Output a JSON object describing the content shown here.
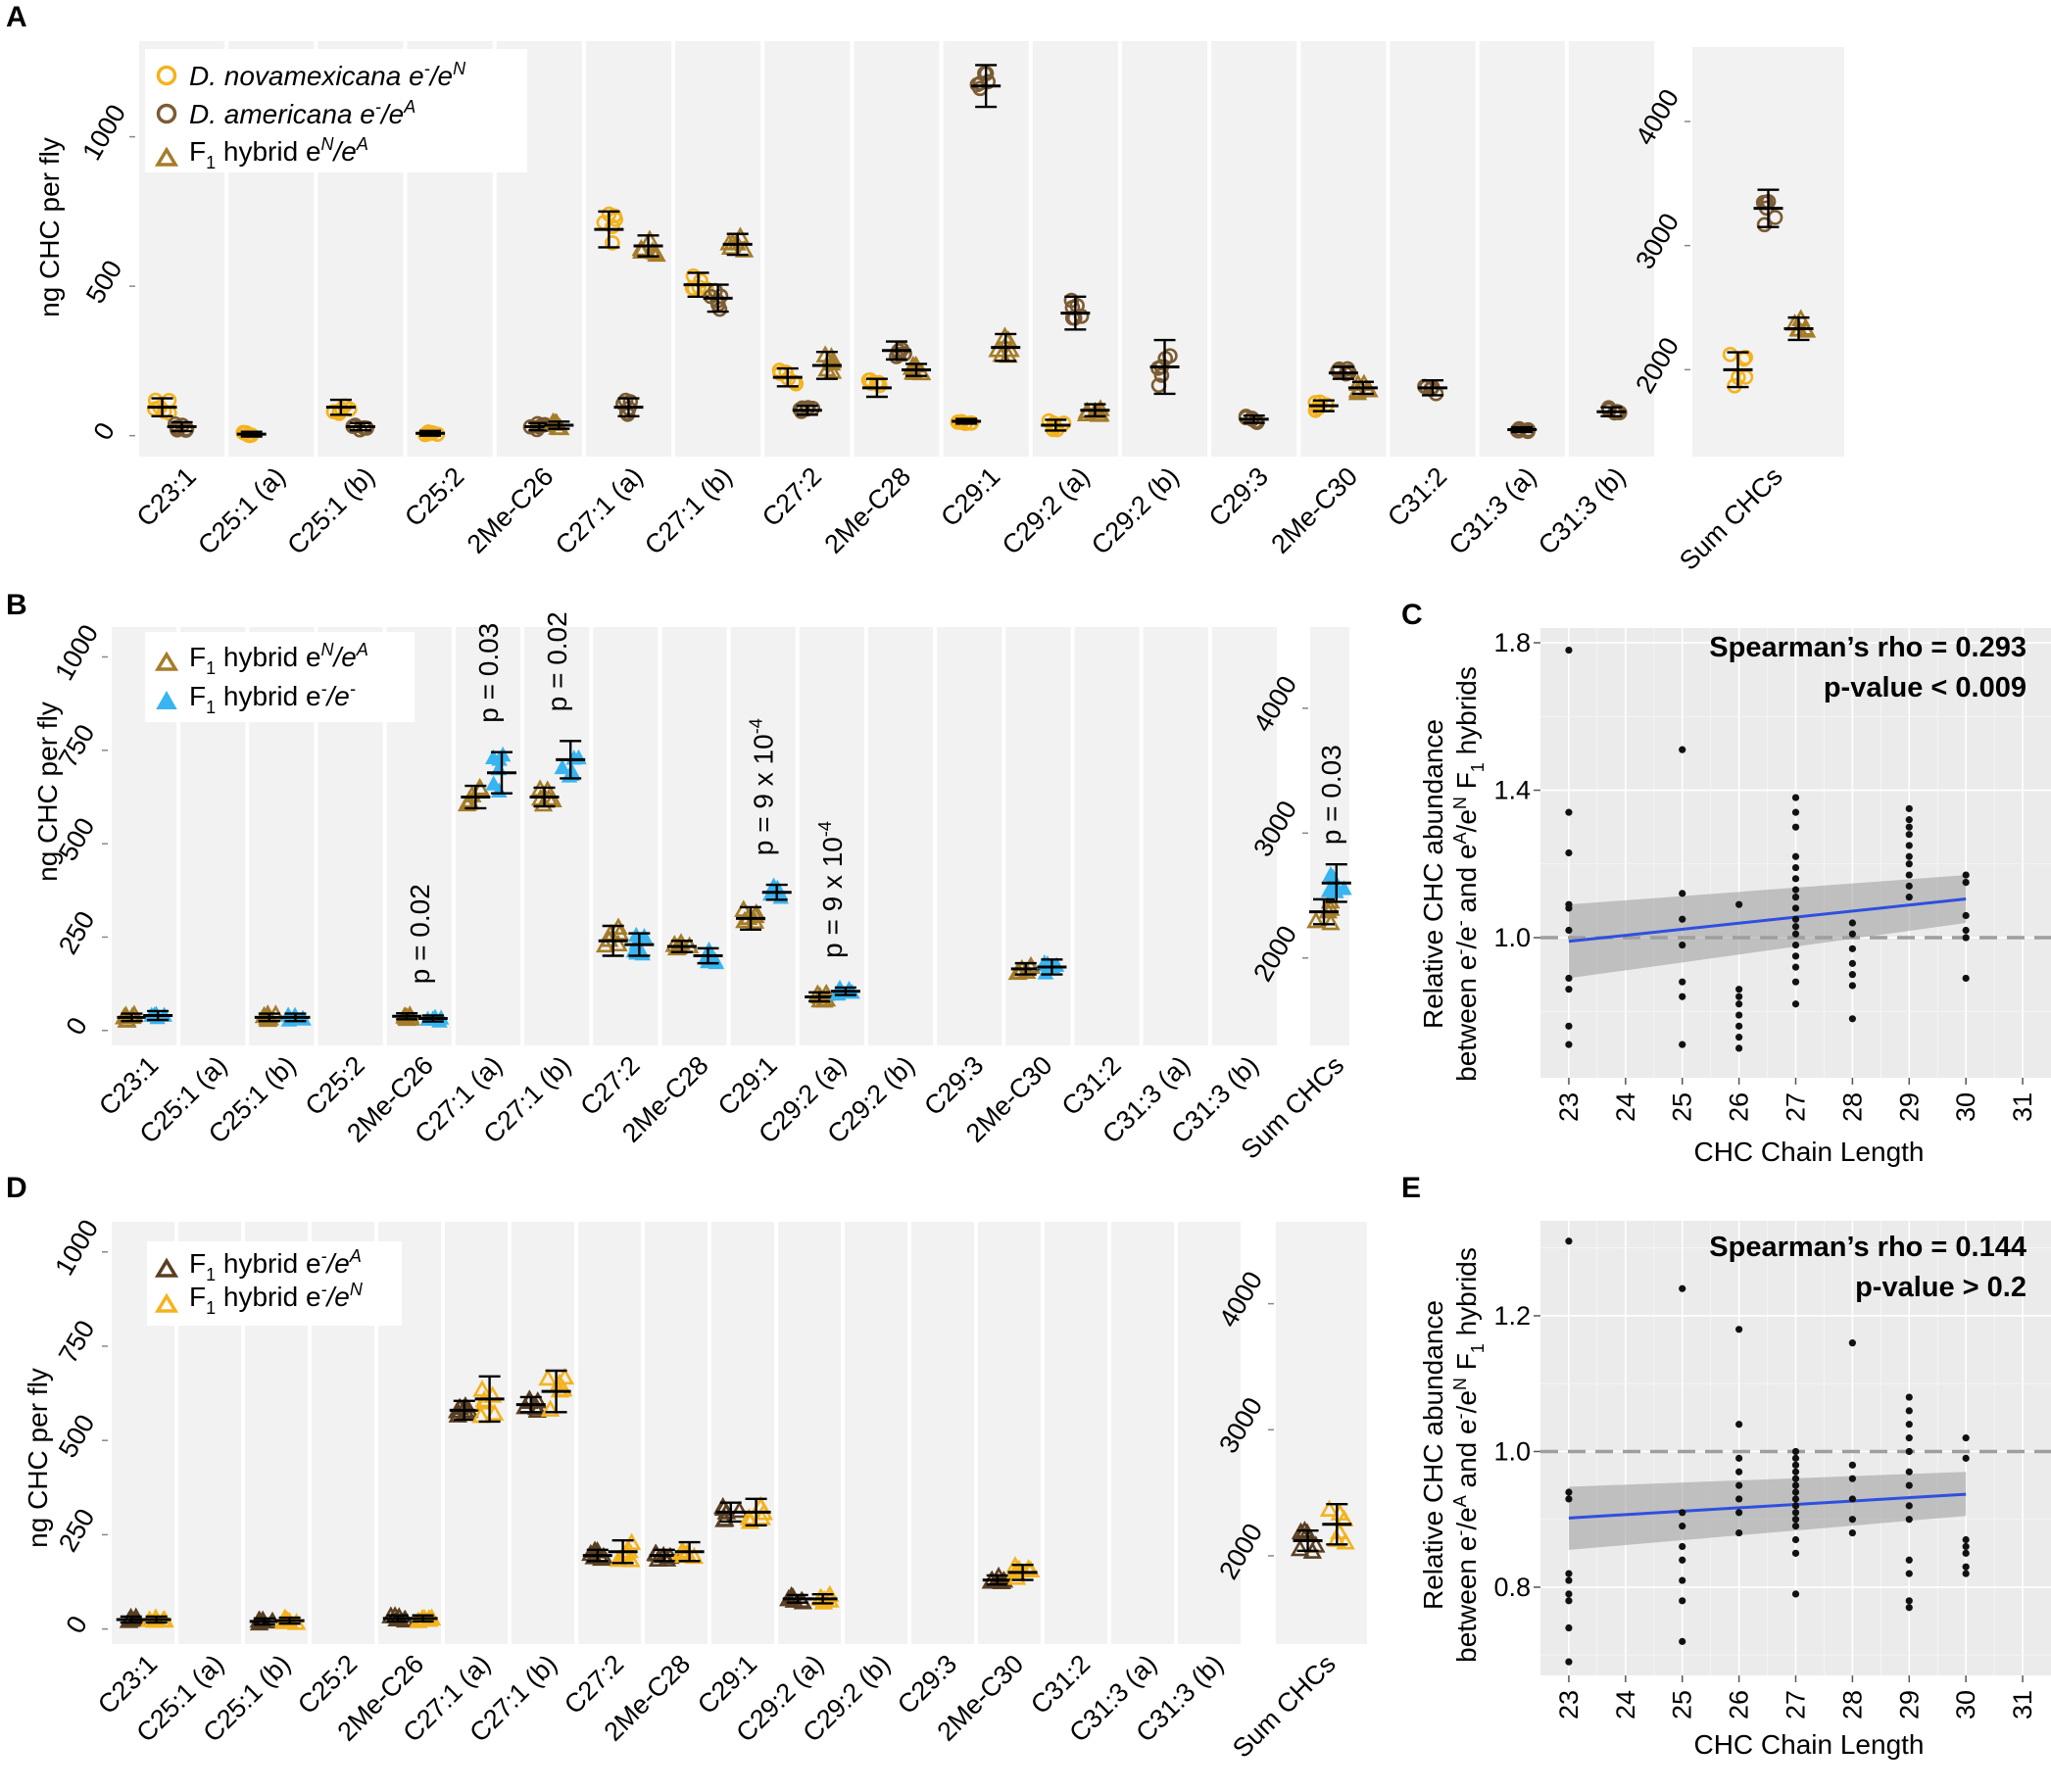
{
  "figure": {
    "panels": [
      "A",
      "B",
      "C",
      "D",
      "E"
    ]
  },
  "chart_data": [
    {
      "id": "A",
      "type": "scatter",
      "ylabel": "ng CHC per fly",
      "categories": [
        "C23:1",
        "C25:1 (a)",
        "C25:1 (b)",
        "C25:2",
        "2Me-C26",
        "C27:1 (a)",
        "C27:1 (b)",
        "C27:2",
        "2Me-C28",
        "C29:1",
        "C29:2 (a)",
        "C29:2 (b)",
        "C29:3",
        "2Me-C30",
        "C31:2",
        "C31:3 (a)",
        "C31:3 (b)"
      ],
      "ylim": [
        -70,
        1320
      ],
      "yticks": [
        0,
        500,
        1000
      ],
      "ytick_labels": [
        "0",
        "500",
        "1000"
      ],
      "sum_panel": {
        "label": "Sum CHCs",
        "ylim": [
          1300,
          4600
        ],
        "yticks": [
          2000,
          3000,
          4000
        ],
        "ytick_labels": [
          "2000",
          "3000",
          "4000"
        ]
      },
      "legend": [
        {
          "name": "D. novamexicana",
          "suffix": "e-/eN",
          "shape": "circle",
          "color": "#f4b31e"
        },
        {
          "name": "D. americana",
          "suffix": "e-/eA",
          "shape": "circle",
          "color": "#7b5c34"
        },
        {
          "name": "F1 hybrid",
          "suffix": "eN/eA",
          "shape": "triangle",
          "color": "#a57c29"
        }
      ],
      "legend_text": {
        "n_name": "D. novamexicana",
        "n_sup1": "-",
        "n_mid": "/e",
        "n_sup2": "N",
        "a_name": "D. americana",
        "a_sup1": "-",
        "a_mid": "/e",
        "a_sup2": "A",
        "h_pre": "F",
        "h_sub": "1",
        "h_mid": " hybrid e",
        "h_sup1": "N",
        "h_mid2": "/e",
        "h_sup2": "A"
      },
      "series": [
        {
          "name": "D. novamexicana e-/eN",
          "values": [
            95,
            5,
            95,
            8,
            null,
            690,
            505,
            195,
            160,
            48,
            35,
            null,
            null,
            100,
            null,
            null,
            null
          ],
          "sum": 2000
        },
        {
          "name": "D. americana e-/eA",
          "values": [
            30,
            null,
            30,
            null,
            30,
            95,
            460,
            85,
            285,
            1170,
            410,
            230,
            55,
            210,
            160,
            20,
            80
          ],
          "sum": 3300
        },
        {
          "name": "F1 hybrid eN/eA",
          "values": [
            null,
            null,
            null,
            null,
            35,
            635,
            640,
            235,
            220,
            295,
            85,
            null,
            null,
            160,
            null,
            null,
            null
          ],
          "sum": 2330
        }
      ],
      "series_errors": [
        [
          30,
          8,
          25,
          8,
          null,
          60,
          40,
          30,
          30,
          8,
          18,
          null,
          null,
          18,
          null,
          null,
          null
        ],
        [
          15,
          null,
          12,
          null,
          12,
          30,
          45,
          15,
          30,
          70,
          55,
          90,
          12,
          20,
          25,
          8,
          15
        ],
        [
          null,
          null,
          null,
          null,
          12,
          35,
          35,
          45,
          20,
          45,
          20,
          null,
          null,
          20,
          null,
          null,
          null
        ]
      ],
      "sum_errors": [
        140,
        150,
        90
      ]
    },
    {
      "id": "B",
      "type": "scatter",
      "ylabel": "ng CHC per fly",
      "categories": [
        "C23:1",
        "C25:1 (a)",
        "C25:1 (b)",
        "C25:2",
        "2Me-C26",
        "C27:1 (a)",
        "C27:1 (b)",
        "C27:2",
        "2Me-C28",
        "C29:1",
        "C29:2 (a)",
        "C29:2 (b)",
        "C29:3",
        "2Me-C30",
        "C31:2",
        "C31:3 (a)",
        "C31:3 (b)"
      ],
      "ylim": [
        -40,
        1080
      ],
      "yticks": [
        0,
        250,
        500,
        750,
        1000
      ],
      "ytick_labels": [
        "0",
        "250",
        "500",
        "750",
        "1000"
      ],
      "sum_panel": {
        "label": "Sum CHCs",
        "ylim": [
          1300,
          4650
        ],
        "yticks": [
          2000,
          3000,
          4000
        ],
        "ytick_labels": [
          "2000",
          "3000",
          "4000"
        ]
      },
      "legend": [
        {
          "name": "F1 hybrid",
          "suffix": "eN/eA",
          "shape": "triangle",
          "color": "#a57c29"
        },
        {
          "name": "F1 hybrid",
          "suffix": "e-/e-",
          "shape": "triangle-filled",
          "color": "#38b4f0"
        }
      ],
      "legend_text": {
        "h1_pre": "F",
        "h1_sub": "1",
        "h1_mid": " hybrid e",
        "h1_sup1": "N",
        "h1_mid2": "/e",
        "h1_sup2": "A",
        "h2_pre": "F",
        "h2_sub": "1",
        "h2_mid": " hybrid e",
        "h2_sup1": "-",
        "h2_mid2": "/e",
        "h2_sup2": "-"
      },
      "series": [
        {
          "name": "F1 hybrid eN/eA",
          "values": [
            35,
            null,
            35,
            null,
            38,
            625,
            625,
            240,
            225,
            300,
            90,
            null,
            null,
            165,
            null,
            null,
            null
          ],
          "sum": 2370
        },
        {
          "name": "F1 hybrid e-/e-",
          "values": [
            40,
            null,
            35,
            null,
            32,
            690,
            725,
            230,
            200,
            370,
            105,
            null,
            null,
            170,
            null,
            null,
            null
          ],
          "sum": 2600
        }
      ],
      "series_errors": [
        [
          10,
          null,
          10,
          null,
          8,
          30,
          25,
          40,
          15,
          30,
          12,
          null,
          null,
          15,
          null,
          null,
          null
        ],
        [
          12,
          null,
          10,
          null,
          8,
          55,
          50,
          30,
          20,
          20,
          10,
          null,
          null,
          20,
          null,
          null,
          null
        ]
      ],
      "sum_errors": [
        100,
        150
      ],
      "annotations": [
        {
          "category": "2Me-C26",
          "text": "p = 0.02"
        },
        {
          "category": "C27:1 (a)",
          "text": "p = 0.03"
        },
        {
          "category": "C27:1 (b)",
          "text": "p = 0.02"
        },
        {
          "category": "C29:1",
          "text": "p = 9 x 10",
          "exp": "-4"
        },
        {
          "category": "C29:2 (a)",
          "text": "p = 9 x 10",
          "exp": "-4"
        },
        {
          "category": "Sum CHCs",
          "text": "p = 0.03"
        }
      ]
    },
    {
      "id": "C",
      "type": "scatter",
      "xlabel": "CHC Chain Length",
      "ylabel_line1": "Relative CHC abundance",
      "ylabel_line2": "between e-/e- and eA/eN F1 hybrids",
      "ylabel_parts": {
        "a": "between e",
        "b": "-",
        "c": "/e",
        "d": "-",
        "e": " and e",
        "f": "A",
        "g": "/e",
        "h": "N",
        "i": " F",
        "j": "1",
        "k": " hybrids"
      },
      "xlim": [
        22.5,
        31.5
      ],
      "ylim": [
        0.62,
        1.84
      ],
      "xticks": [
        23,
        24,
        25,
        26,
        27,
        28,
        29,
        30,
        31
      ],
      "xtick_labels": [
        "23",
        "24",
        "25",
        "26",
        "27",
        "28",
        "29",
        "30",
        "31"
      ],
      "yticks": [
        1.0,
        1.4,
        1.8
      ],
      "ytick_labels": [
        "1.0",
        "1.4",
        "1.8"
      ],
      "stat_rho": "Spearman’s rho = 0.293",
      "stat_p": "p-value < 0.009",
      "reference_line": 1.0,
      "fit": {
        "x": [
          23,
          30
        ],
        "y": [
          0.99,
          1.105
        ],
        "ci_lower": [
          0.89,
          1.04
        ],
        "ci_upper": [
          1.09,
          1.17
        ]
      },
      "points": {
        "23": [
          1.78,
          1.34,
          1.23,
          1.09,
          1.08,
          1.02,
          0.89,
          0.86,
          0.76,
          0.71
        ],
        "25": [
          1.51,
          1.12,
          1.05,
          0.98,
          0.88,
          0.84,
          0.71
        ],
        "26": [
          1.09,
          0.86,
          0.84,
          0.82,
          0.79,
          0.76,
          0.73,
          0.7
        ],
        "27": [
          1.38,
          1.34,
          1.3,
          1.22,
          1.19,
          1.16,
          1.13,
          1.11,
          1.08,
          1.05,
          1.03,
          1.01,
          0.98,
          0.95,
          0.92,
          0.88,
          0.82
        ],
        "28": [
          1.04,
          1.01,
          0.97,
          0.93,
          0.9,
          0.87,
          0.78
        ],
        "29": [
          1.35,
          1.32,
          1.3,
          1.28,
          1.25,
          1.22,
          1.2,
          1.17,
          1.14,
          1.11
        ],
        "30": [
          1.17,
          1.15,
          1.06,
          1.02,
          1.0,
          0.89
        ]
      }
    },
    {
      "id": "D",
      "type": "scatter",
      "ylabel": "ng CHC per fly",
      "categories": [
        "C23:1",
        "C25:1 (a)",
        "C25:1 (b)",
        "C25:2",
        "2Me-C26",
        "C27:1 (a)",
        "C27:1 (b)",
        "C27:2",
        "2Me-C28",
        "C29:1",
        "C29:2 (a)",
        "C29:2 (b)",
        "C29:3",
        "2Me-C30",
        "C31:2",
        "C31:3 (a)",
        "C31:3 (b)"
      ],
      "ylim": [
        -40,
        1080
      ],
      "yticks": [
        0,
        250,
        500,
        750,
        1000
      ],
      "ytick_labels": [
        "0",
        "250",
        "500",
        "750",
        "1000"
      ],
      "sum_panel": {
        "label": "Sum CHCs",
        "ylim": [
          1300,
          4650
        ],
        "yticks": [
          2000,
          3000,
          4000
        ],
        "ytick_labels": [
          "2000",
          "3000",
          "4000"
        ]
      },
      "legend": [
        {
          "name": "F1 hybrid",
          "suffix": "e-/eA",
          "shape": "triangle",
          "color": "#5a3f22"
        },
        {
          "name": "F1 hybrid",
          "suffix": "e-/eN",
          "shape": "triangle",
          "color": "#f4b31e"
        }
      ],
      "legend_text": {
        "h1_pre": "F",
        "h1_sub": "1",
        "h1_mid": " hybrid e",
        "h1_sup1": "-",
        "h1_mid2": "/e",
        "h1_sup2": "A",
        "h2_pre": "F",
        "h2_sub": "1",
        "h2_mid": " hybrid e",
        "h2_sup1": "-",
        "h2_mid2": "/e",
        "h2_sup2": "N"
      },
      "series": [
        {
          "name": "F1 hybrid e-/eA",
          "values": [
            25,
            null,
            20,
            null,
            28,
            580,
            595,
            195,
            195,
            310,
            80,
            null,
            null,
            130,
            null,
            null,
            null
          ],
          "sum": 2120
        },
        {
          "name": "F1 hybrid e-/eN",
          "values": [
            25,
            null,
            22,
            null,
            28,
            610,
            630,
            205,
            205,
            310,
            80,
            null,
            null,
            150,
            null,
            null,
            null
          ],
          "sum": 2250
        }
      ],
      "series_errors": [
        [
          8,
          null,
          8,
          null,
          8,
          25,
          20,
          15,
          15,
          25,
          10,
          null,
          null,
          12,
          null,
          null,
          null
        ],
        [
          8,
          null,
          8,
          null,
          8,
          60,
          55,
          30,
          25,
          35,
          12,
          null,
          null,
          20,
          null,
          null,
          null
        ]
      ],
      "sum_errors": [
        80,
        160
      ]
    },
    {
      "id": "E",
      "type": "scatter",
      "xlabel": "CHC Chain Length",
      "ylabel_line1": "Relative CHC abundance",
      "ylabel_line2": "between e-/eA and e-/eN F1 hybrids",
      "ylabel_parts": {
        "a": "between e",
        "b": "-",
        "c": "/e",
        "d": "A",
        "e": " and e",
        "f": "-",
        "g": "/e",
        "h": "N",
        "i": " F",
        "j": "1",
        "k": " hybrids"
      },
      "xlim": [
        22.5,
        31.5
      ],
      "ylim": [
        0.67,
        1.34
      ],
      "xticks": [
        23,
        24,
        25,
        26,
        27,
        28,
        29,
        30,
        31
      ],
      "xtick_labels": [
        "23",
        "24",
        "25",
        "26",
        "27",
        "28",
        "29",
        "30",
        "31"
      ],
      "yticks": [
        0.8,
        1.0,
        1.2
      ],
      "ytick_labels": [
        "0.8",
        "1.0",
        "1.2"
      ],
      "stat_rho": "Spearman’s rho = 0.144",
      "stat_p": "p-value > 0.2",
      "reference_line": 1.0,
      "fit": {
        "x": [
          23,
          30
        ],
        "y": [
          0.902,
          0.937
        ],
        "ci_lower": [
          0.855,
          0.905
        ],
        "ci_upper": [
          0.948,
          0.97
        ]
      },
      "points": {
        "23": [
          1.31,
          0.94,
          0.93,
          0.82,
          0.81,
          0.79,
          0.78,
          0.74,
          0.69
        ],
        "25": [
          1.24,
          0.91,
          0.89,
          0.86,
          0.84,
          0.81,
          0.78,
          0.72
        ],
        "26": [
          1.18,
          1.04,
          0.99,
          0.97,
          0.95,
          0.93,
          0.91,
          0.88
        ],
        "27": [
          1.0,
          0.99,
          0.98,
          0.97,
          0.96,
          0.95,
          0.94,
          0.93,
          0.92,
          0.91,
          0.9,
          0.89,
          0.87,
          0.85,
          0.79
        ],
        "28": [
          1.16,
          0.98,
          0.96,
          0.93,
          0.9,
          0.88
        ],
        "29": [
          1.08,
          1.06,
          1.04,
          1.02,
          1.0,
          0.97,
          0.95,
          0.92,
          0.9,
          0.84,
          0.82,
          0.78,
          0.77
        ],
        "30": [
          1.02,
          0.99,
          0.87,
          0.86,
          0.85,
          0.83,
          0.82
        ]
      }
    }
  ]
}
